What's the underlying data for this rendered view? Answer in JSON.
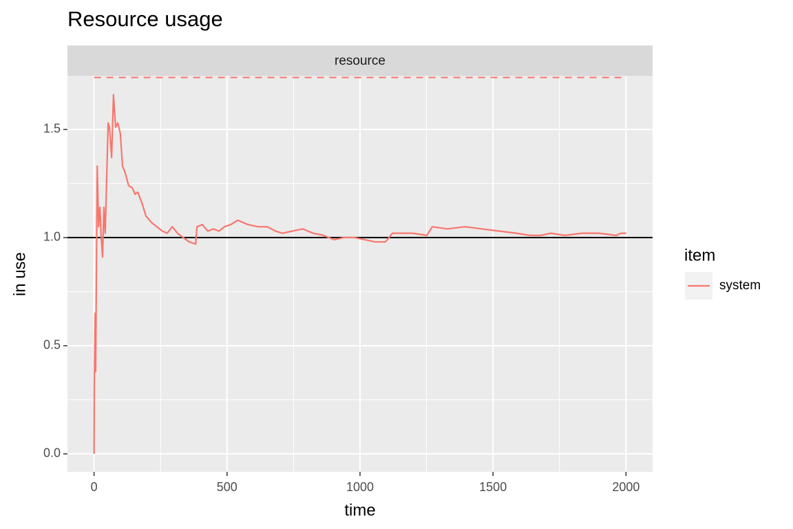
{
  "chart_data": {
    "type": "line",
    "title": "Resource usage",
    "facet": "resource",
    "x_label": "time",
    "y_label": "in use",
    "legend_title": "item",
    "xlim": [
      -100,
      2100
    ],
    "ylim": [
      -0.083,
      1.748
    ],
    "xticks": [
      0,
      500,
      1000,
      1500,
      2000
    ],
    "yticks": [
      {
        "value": 0,
        "label": "0.0"
      },
      0.5,
      {
        "value": 1,
        "label": "1.0"
      },
      1.5
    ],
    "grid": true,
    "reference_lines": [
      {
        "value": 1.0,
        "color": "#000000",
        "dashed": false
      },
      {
        "value": 1.74,
        "color": "#F8766D",
        "dashed": true
      }
    ],
    "x": [
      0,
      1,
      4,
      6,
      12,
      17,
      22,
      27,
      32,
      37,
      42,
      48,
      53,
      58,
      66,
      73,
      81,
      89,
      99,
      107,
      117,
      130,
      144,
      154,
      164,
      180,
      195,
      216,
      236,
      257,
      275,
      294,
      314,
      335,
      358,
      382,
      387,
      407,
      428,
      449,
      470,
      490,
      514,
      540,
      579,
      617,
      651,
      682,
      708,
      746,
      785,
      824,
      863,
      902,
      940,
      979,
      1019,
      1057,
      1096,
      1122,
      1161,
      1199,
      1251,
      1272,
      1329,
      1394,
      1458,
      1523,
      1588,
      1640,
      1679,
      1718,
      1770,
      1834,
      1899,
      1963,
      1981,
      2001
    ],
    "series": [
      {
        "name": "system",
        "color": "#F8766D",
        "values": [
          0,
          0.32,
          0.65,
          0.38,
          1.33,
          1.05,
          1.14,
          1.0,
          0.91,
          1.14,
          1.02,
          1.3,
          1.53,
          1.51,
          1.37,
          1.66,
          1.51,
          1.53,
          1.48,
          1.33,
          1.3,
          1.24,
          1.23,
          1.2,
          1.21,
          1.16,
          1.1,
          1.07,
          1.05,
          1.03,
          1.02,
          1.05,
          1.02,
          1.0,
          0.98,
          0.97,
          1.05,
          1.06,
          1.03,
          1.04,
          1.03,
          1.05,
          1.06,
          1.08,
          1.06,
          1.05,
          1.05,
          1.03,
          1.02,
          1.03,
          1.04,
          1.02,
          1.01,
          0.99,
          1.0,
          1.0,
          0.99,
          0.98,
          0.98,
          1.02,
          1.02,
          1.02,
          1.01,
          1.05,
          1.04,
          1.05,
          1.04,
          1.03,
          1.02,
          1.01,
          1.01,
          1.02,
          1.01,
          1.02,
          1.02,
          1.01,
          1.02,
          1.02
        ]
      }
    ]
  }
}
